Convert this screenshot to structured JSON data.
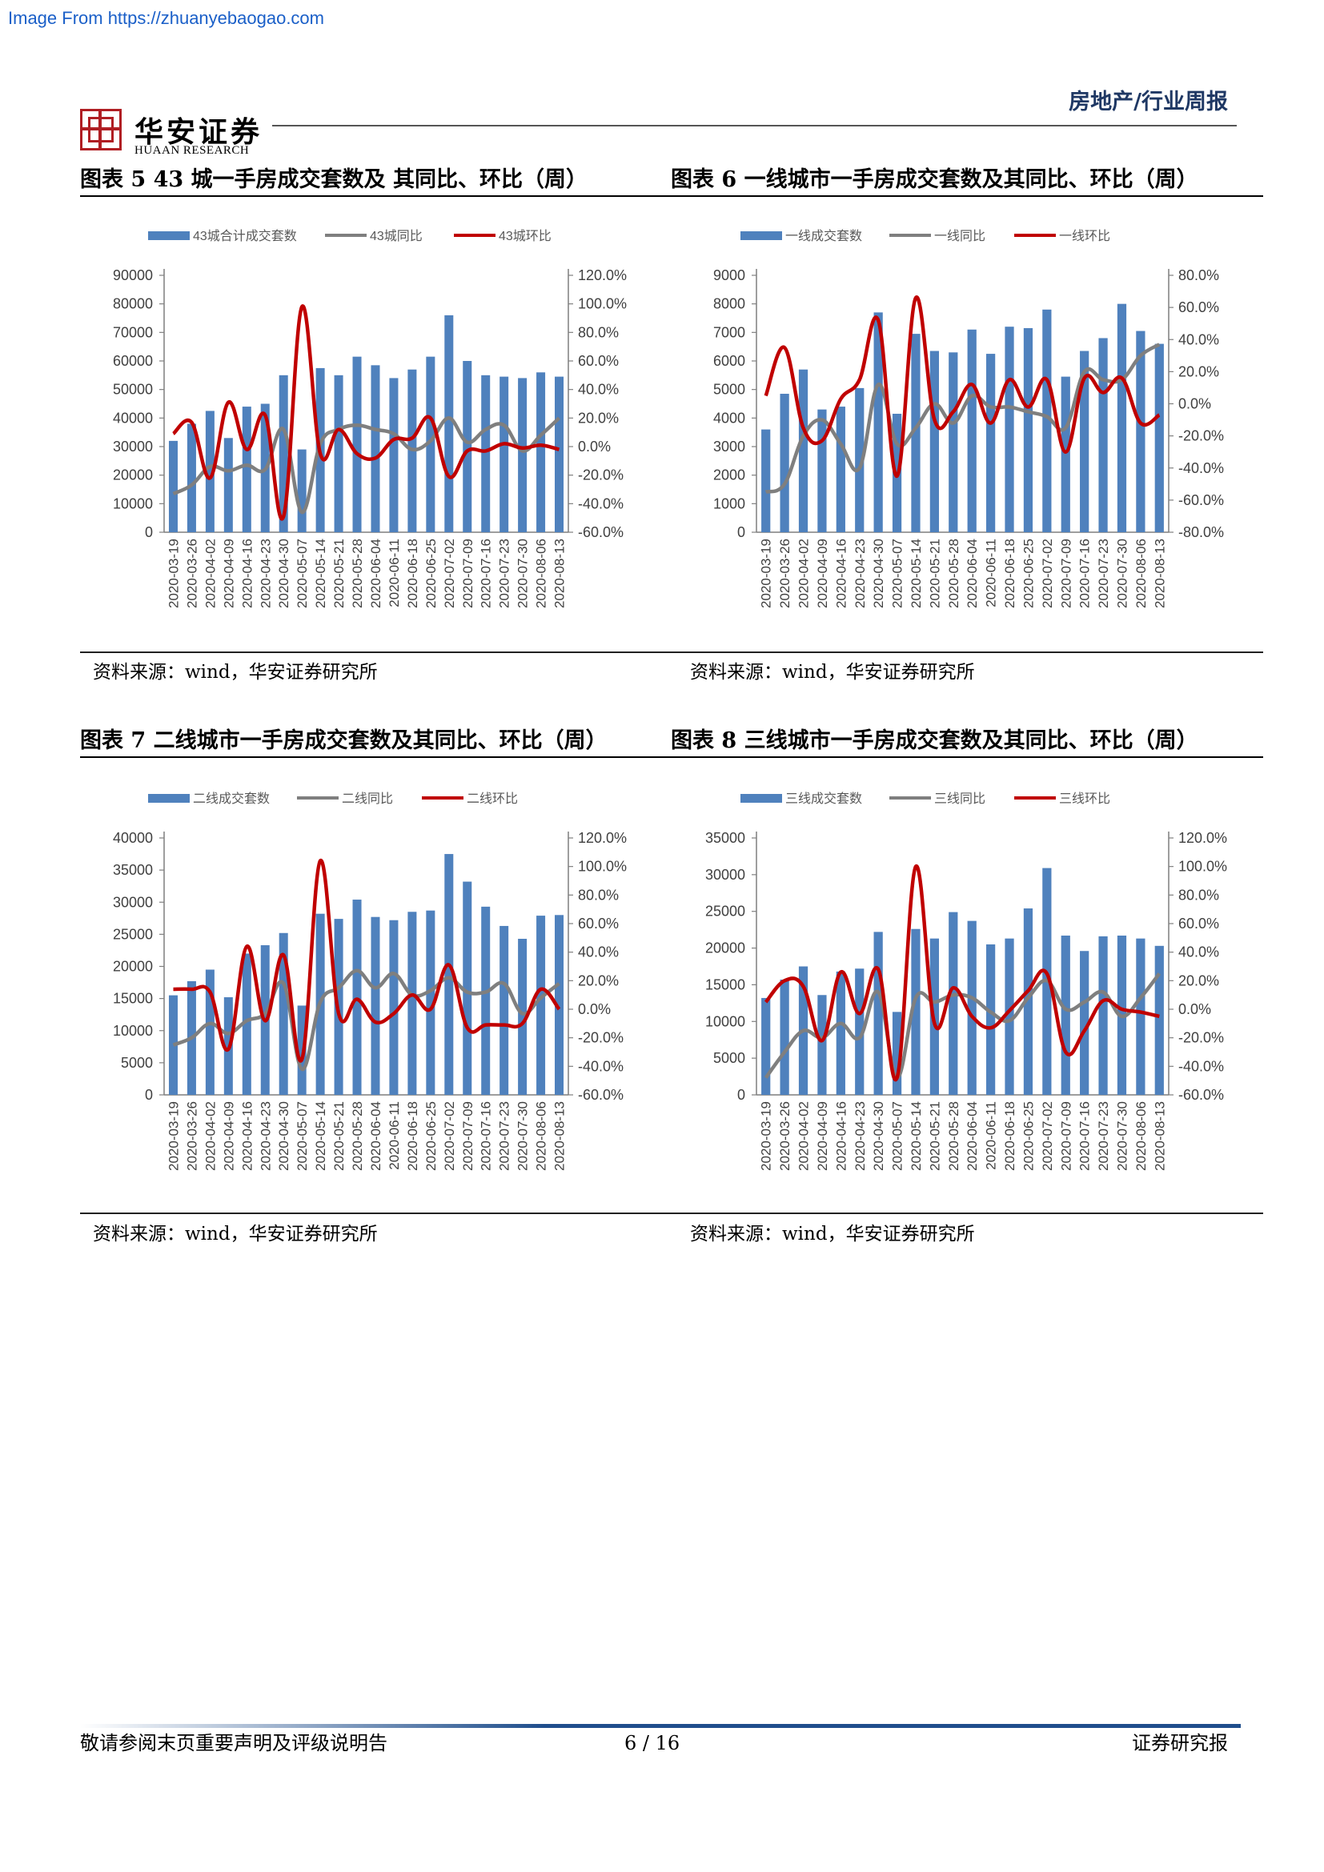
{
  "watermark": "Image From https://zhuanyebaogao.com",
  "header": {
    "report_type": "房地产/行业周报",
    "logo_cn": "华安证券",
    "logo_en": "HUAAN RESEARCH"
  },
  "colors": {
    "bar": "#4f81bd",
    "yoy": "#7f7f7f",
    "mom": "#c00000",
    "accent": "#b01e23"
  },
  "figures": [
    {
      "title": "图表 5 43 城一手房成交套数及 其同比、环比（周）",
      "source": "资料来源：wind，华安证券研究所"
    },
    {
      "title": "图表 6  一线城市一手房成交套数及其同比、环比（周）",
      "source": "资料来源：wind，华安证券研究所"
    },
    {
      "title": "图表 7  二线城市一手房成交套数及其同比、环比（周）",
      "source": "资料来源：wind，华安证券研究所"
    },
    {
      "title": "图表 8  三线城市一手房成交套数及其同比、环比（周）",
      "source": "资料来源：wind，华安证券研究所"
    }
  ],
  "chart_data": [
    {
      "type": "bar+line",
      "legend_position": "top",
      "categories": [
        "2020-03-19",
        "2020-03-26",
        "2020-04-02",
        "2020-04-09",
        "2020-04-16",
        "2020-04-23",
        "2020-04-30",
        "2020-05-07",
        "2020-05-14",
        "2020-05-21",
        "2020-05-28",
        "2020-06-04",
        "2020-06-11",
        "2020-06-18",
        "2020-06-25",
        "2020-07-02",
        "2020-07-09",
        "2020-07-16",
        "2020-07-23",
        "2020-07-30",
        "2020-08-06",
        "2020-08-13"
      ],
      "left_axis": {
        "min": 0,
        "max": 90000,
        "step": 10000
      },
      "right_axis": {
        "min": -60,
        "max": 120,
        "step": 20,
        "format": "percent"
      },
      "series": [
        {
          "name": "43城合计成交套数",
          "kind": "bar",
          "axis": "left",
          "values": [
            32000,
            38000,
            42500,
            33000,
            44000,
            45000,
            55000,
            29000,
            57500,
            55000,
            61500,
            58500,
            54000,
            57000,
            61500,
            76000,
            60000,
            55000,
            54500,
            54000,
            56000,
            54500
          ]
        },
        {
          "name": "43城同比",
          "kind": "line",
          "axis": "right",
          "values": [
            -33,
            -27,
            -14,
            -17,
            -13,
            -16,
            12,
            -46,
            2,
            12,
            15,
            12,
            9,
            -2,
            4,
            20,
            3,
            12,
            15,
            -3,
            8,
            20
          ]
        },
        {
          "name": "43城环比",
          "kind": "line",
          "axis": "right",
          "values": [
            9,
            17,
            -22,
            31,
            -2,
            22,
            -49,
            98,
            -5,
            12,
            -5,
            -8,
            5,
            6,
            20,
            -21,
            -3,
            -3,
            2,
            -1,
            1,
            -2
          ]
        }
      ]
    },
    {
      "type": "bar+line",
      "legend_position": "top",
      "categories": [
        "2020-03-19",
        "2020-03-26",
        "2020-04-02",
        "2020-04-09",
        "2020-04-16",
        "2020-04-23",
        "2020-04-30",
        "2020-05-07",
        "2020-05-14",
        "2020-05-21",
        "2020-05-28",
        "2020-06-04",
        "2020-06-11",
        "2020-06-18",
        "2020-06-25",
        "2020-07-02",
        "2020-07-09",
        "2020-07-16",
        "2020-07-23",
        "2020-07-30",
        "2020-08-06",
        "2020-08-13"
      ],
      "left_axis": {
        "min": 0,
        "max": 9000,
        "step": 1000
      },
      "right_axis": {
        "min": -80,
        "max": 80,
        "step": 20,
        "format": "percent"
      },
      "series": [
        {
          "name": "一线成交套数",
          "kind": "bar",
          "axis": "left",
          "values": [
            3600,
            4850,
            5700,
            4300,
            4400,
            5050,
            7700,
            4150,
            6950,
            6350,
            6300,
            7100,
            6250,
            7200,
            7150,
            7800,
            5450,
            6350,
            6800,
            8000,
            7050,
            6600
          ]
        },
        {
          "name": "一线同比",
          "kind": "line",
          "axis": "right",
          "values": [
            -55,
            -50,
            -20,
            -10,
            -25,
            -40,
            12,
            -25,
            -15,
            0,
            -12,
            5,
            -2,
            -2,
            -5,
            -8,
            -15,
            20,
            15,
            15,
            30,
            37
          ]
        },
        {
          "name": "一线环比",
          "kind": "line",
          "axis": "right",
          "values": [
            5,
            35,
            -15,
            -23,
            3,
            15,
            52,
            -45,
            66,
            -10,
            -5,
            12,
            -12,
            15,
            -2,
            15,
            -30,
            16,
            7,
            16,
            -12,
            -7
          ]
        }
      ]
    },
    {
      "type": "bar+line",
      "legend_position": "top",
      "categories": [
        "2020-03-19",
        "2020-03-26",
        "2020-04-02",
        "2020-04-09",
        "2020-04-16",
        "2020-04-23",
        "2020-04-30",
        "2020-05-07",
        "2020-05-14",
        "2020-05-21",
        "2020-05-28",
        "2020-06-04",
        "2020-06-11",
        "2020-06-18",
        "2020-06-25",
        "2020-07-02",
        "2020-07-09",
        "2020-07-16",
        "2020-07-23",
        "2020-07-30",
        "2020-08-06",
        "2020-08-13"
      ],
      "left_axis": {
        "min": 0,
        "max": 40000,
        "step": 5000
      },
      "right_axis": {
        "min": -60,
        "max": 120,
        "step": 20,
        "format": "percent"
      },
      "series": [
        {
          "name": "二线成交套数",
          "kind": "bar",
          "axis": "left",
          "values": [
            15500,
            17700,
            19500,
            15200,
            22000,
            23300,
            25200,
            13900,
            28200,
            27400,
            30400,
            27700,
            27200,
            28500,
            28700,
            37500,
            33200,
            29300,
            26300,
            24300,
            27900,
            28000
          ]
        },
        {
          "name": "二线同比",
          "kind": "line",
          "axis": "right",
          "values": [
            -25,
            -20,
            -10,
            -17,
            -8,
            -3,
            18,
            -42,
            5,
            15,
            27,
            15,
            25,
            10,
            13,
            22,
            12,
            12,
            18,
            -3,
            8,
            18
          ]
        },
        {
          "name": "二线环比",
          "kind": "line",
          "axis": "right",
          "values": [
            14,
            14,
            12,
            -28,
            44,
            -8,
            38,
            -35,
            104,
            -3,
            7,
            -9,
            -3,
            10,
            0,
            31,
            -13,
            -11,
            -11,
            -10,
            14,
            0
          ]
        }
      ]
    },
    {
      "type": "bar+line",
      "legend_position": "top",
      "categories": [
        "2020-03-19",
        "2020-03-26",
        "2020-04-02",
        "2020-04-09",
        "2020-04-16",
        "2020-04-23",
        "2020-04-30",
        "2020-05-07",
        "2020-05-14",
        "2020-05-21",
        "2020-05-28",
        "2020-06-04",
        "2020-06-11",
        "2020-06-18",
        "2020-06-25",
        "2020-07-02",
        "2020-07-09",
        "2020-07-16",
        "2020-07-23",
        "2020-07-30",
        "2020-08-06",
        "2020-08-13"
      ],
      "left_axis": {
        "min": 0,
        "max": 35000,
        "step": 5000
      },
      "right_axis": {
        "min": -60,
        "max": 120,
        "step": 20,
        "format": "percent"
      },
      "series": [
        {
          "name": "三线成交套数",
          "kind": "bar",
          "axis": "left",
          "values": [
            13200,
            15700,
            17500,
            13600,
            16800,
            17200,
            22200,
            11300,
            22600,
            21300,
            24900,
            23700,
            20500,
            21300,
            25400,
            30900,
            21700,
            19600,
            21600,
            21700,
            21300,
            20300
          ]
        },
        {
          "name": "三线同比",
          "kind": "line",
          "axis": "right",
          "values": [
            -48,
            -30,
            -15,
            -20,
            -10,
            -20,
            12,
            -48,
            8,
            5,
            10,
            8,
            -2,
            -8,
            8,
            20,
            0,
            5,
            12,
            -5,
            8,
            25
          ]
        },
        {
          "name": "三线环比",
          "kind": "line",
          "axis": "right",
          "values": [
            5,
            20,
            16,
            -22,
            26,
            -3,
            28,
            -48,
            100,
            -10,
            15,
            -5,
            -13,
            -1,
            13,
            25,
            -30,
            -15,
            6,
            0,
            -2,
            -5
          ]
        }
      ]
    }
  ],
  "footer": {
    "left": "敬请参阅末页重要声明及评级说明告",
    "page": "6 / 16",
    "right": "证券研究报"
  }
}
